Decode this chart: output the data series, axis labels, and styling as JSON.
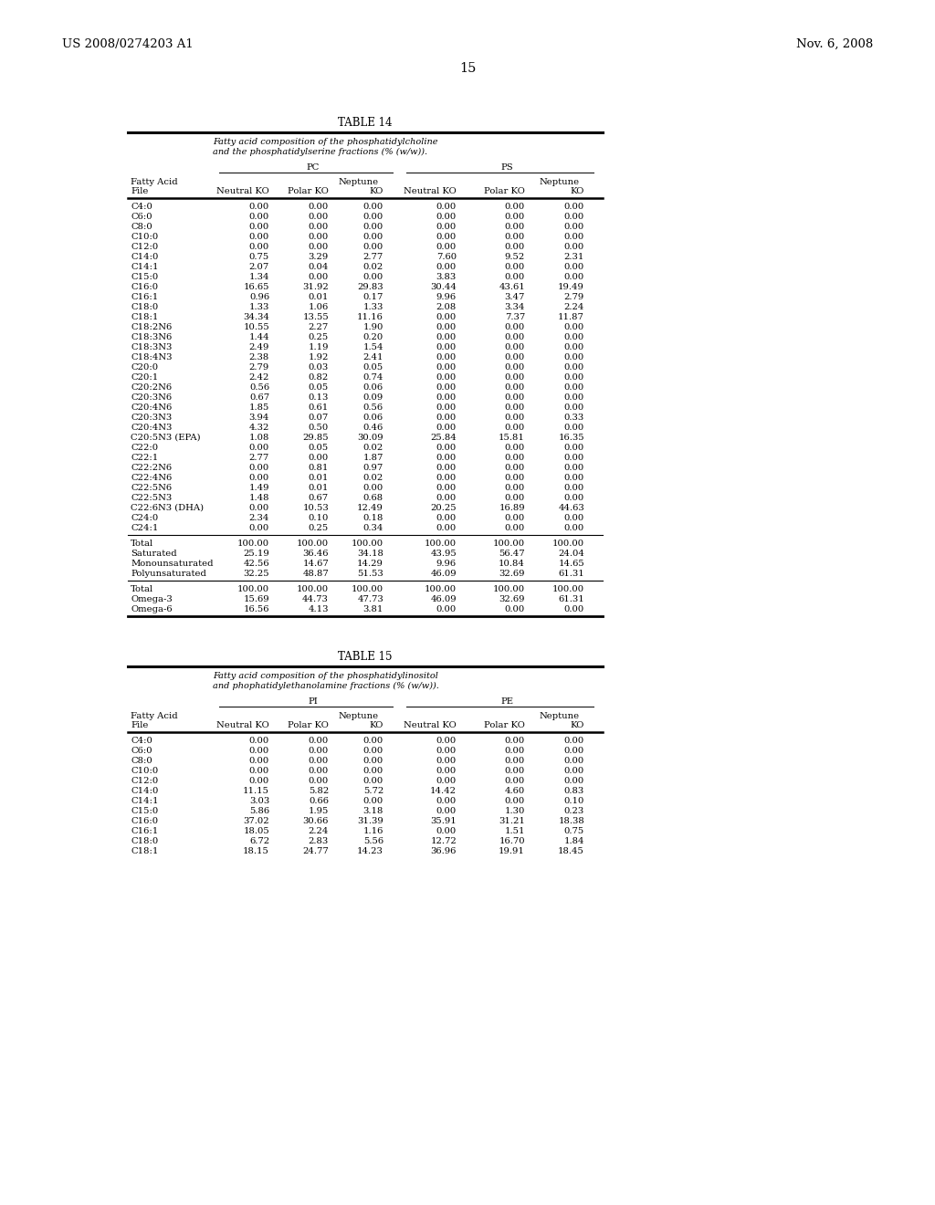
{
  "header_left": "US 2008/0274203 A1",
  "header_right": "Nov. 6, 2008",
  "page_number": "15",
  "table14_title": "TABLE 14",
  "table14_subtitle1": "Fatty acid composition of the phosphatidylcholine",
  "table14_subtitle2": "and the phosphatidylserine fractions (% (w/w)).",
  "table14_group1": "PC",
  "table14_group2": "PS",
  "table14_rows": [
    [
      "C4:0",
      "0.00",
      "0.00",
      "0.00",
      "0.00",
      "0.00",
      "0.00"
    ],
    [
      "C6:0",
      "0.00",
      "0.00",
      "0.00",
      "0.00",
      "0.00",
      "0.00"
    ],
    [
      "C8:0",
      "0.00",
      "0.00",
      "0.00",
      "0.00",
      "0.00",
      "0.00"
    ],
    [
      "C10:0",
      "0.00",
      "0.00",
      "0.00",
      "0.00",
      "0.00",
      "0.00"
    ],
    [
      "C12:0",
      "0.00",
      "0.00",
      "0.00",
      "0.00",
      "0.00",
      "0.00"
    ],
    [
      "C14:0",
      "0.75",
      "3.29",
      "2.77",
      "7.60",
      "9.52",
      "2.31"
    ],
    [
      "C14:1",
      "2.07",
      "0.04",
      "0.02",
      "0.00",
      "0.00",
      "0.00"
    ],
    [
      "C15:0",
      "1.34",
      "0.00",
      "0.00",
      "3.83",
      "0.00",
      "0.00"
    ],
    [
      "C16:0",
      "16.65",
      "31.92",
      "29.83",
      "30.44",
      "43.61",
      "19.49"
    ],
    [
      "C16:1",
      "0.96",
      "0.01",
      "0.17",
      "9.96",
      "3.47",
      "2.79"
    ],
    [
      "C18:0",
      "1.33",
      "1.06",
      "1.33",
      "2.08",
      "3.34",
      "2.24"
    ],
    [
      "C18:1",
      "34.34",
      "13.55",
      "11.16",
      "0.00",
      "7.37",
      "11.87"
    ],
    [
      "C18:2N6",
      "10.55",
      "2.27",
      "1.90",
      "0.00",
      "0.00",
      "0.00"
    ],
    [
      "C18:3N6",
      "1.44",
      "0.25",
      "0.20",
      "0.00",
      "0.00",
      "0.00"
    ],
    [
      "C18:3N3",
      "2.49",
      "1.19",
      "1.54",
      "0.00",
      "0.00",
      "0.00"
    ],
    [
      "C18:4N3",
      "2.38",
      "1.92",
      "2.41",
      "0.00",
      "0.00",
      "0.00"
    ],
    [
      "C20:0",
      "2.79",
      "0.03",
      "0.05",
      "0.00",
      "0.00",
      "0.00"
    ],
    [
      "C20:1",
      "2.42",
      "0.82",
      "0.74",
      "0.00",
      "0.00",
      "0.00"
    ],
    [
      "C20:2N6",
      "0.56",
      "0.05",
      "0.06",
      "0.00",
      "0.00",
      "0.00"
    ],
    [
      "C20:3N6",
      "0.67",
      "0.13",
      "0.09",
      "0.00",
      "0.00",
      "0.00"
    ],
    [
      "C20:4N6",
      "1.85",
      "0.61",
      "0.56",
      "0.00",
      "0.00",
      "0.00"
    ],
    [
      "C20:3N3",
      "3.94",
      "0.07",
      "0.06",
      "0.00",
      "0.00",
      "0.33"
    ],
    [
      "C20:4N3",
      "4.32",
      "0.50",
      "0.46",
      "0.00",
      "0.00",
      "0.00"
    ],
    [
      "C20:5N3 (EPA)",
      "1.08",
      "29.85",
      "30.09",
      "25.84",
      "15.81",
      "16.35"
    ],
    [
      "C22:0",
      "0.00",
      "0.05",
      "0.02",
      "0.00",
      "0.00",
      "0.00"
    ],
    [
      "C22:1",
      "2.77",
      "0.00",
      "1.87",
      "0.00",
      "0.00",
      "0.00"
    ],
    [
      "C22:2N6",
      "0.00",
      "0.81",
      "0.97",
      "0.00",
      "0.00",
      "0.00"
    ],
    [
      "C22:4N6",
      "0.00",
      "0.01",
      "0.02",
      "0.00",
      "0.00",
      "0.00"
    ],
    [
      "C22:5N6",
      "1.49",
      "0.01",
      "0.00",
      "0.00",
      "0.00",
      "0.00"
    ],
    [
      "C22:5N3",
      "1.48",
      "0.67",
      "0.68",
      "0.00",
      "0.00",
      "0.00"
    ],
    [
      "C22:6N3 (DHA)",
      "0.00",
      "10.53",
      "12.49",
      "20.25",
      "16.89",
      "44.63"
    ],
    [
      "C24:0",
      "2.34",
      "0.10",
      "0.18",
      "0.00",
      "0.00",
      "0.00"
    ],
    [
      "C24:1",
      "0.00",
      "0.25",
      "0.34",
      "0.00",
      "0.00",
      "0.00"
    ]
  ],
  "table14_summary1": [
    [
      "Total",
      "100.00",
      "100.00",
      "100.00",
      "100.00",
      "100.00",
      "100.00"
    ],
    [
      "Saturated",
      "25.19",
      "36.46",
      "34.18",
      "43.95",
      "56.47",
      "24.04"
    ],
    [
      "Monounsaturated",
      "42.56",
      "14.67",
      "14.29",
      "9.96",
      "10.84",
      "14.65"
    ],
    [
      "Polyunsaturated",
      "32.25",
      "48.87",
      "51.53",
      "46.09",
      "32.69",
      "61.31"
    ]
  ],
  "table14_summary2": [
    [
      "Total",
      "100.00",
      "100.00",
      "100.00",
      "100.00",
      "100.00",
      "100.00"
    ],
    [
      "Omega-3",
      "15.69",
      "44.73",
      "47.73",
      "46.09",
      "32.69",
      "61.31"
    ],
    [
      "Omega-6",
      "16.56",
      "4.13",
      "3.81",
      "0.00",
      "0.00",
      "0.00"
    ]
  ],
  "table15_title": "TABLE 15",
  "table15_subtitle1": "Fatty acid composition of the phosphatidylinositol",
  "table15_subtitle2": "and phophatidylethanolamine fractions (% (w/w)).",
  "table15_group1": "PI",
  "table15_group2": "PE",
  "table15_rows": [
    [
      "C4:0",
      "0.00",
      "0.00",
      "0.00",
      "0.00",
      "0.00",
      "0.00"
    ],
    [
      "C6:0",
      "0.00",
      "0.00",
      "0.00",
      "0.00",
      "0.00",
      "0.00"
    ],
    [
      "C8:0",
      "0.00",
      "0.00",
      "0.00",
      "0.00",
      "0.00",
      "0.00"
    ],
    [
      "C10:0",
      "0.00",
      "0.00",
      "0.00",
      "0.00",
      "0.00",
      "0.00"
    ],
    [
      "C12:0",
      "0.00",
      "0.00",
      "0.00",
      "0.00",
      "0.00",
      "0.00"
    ],
    [
      "C14:0",
      "11.15",
      "5.82",
      "5.72",
      "14.42",
      "4.60",
      "0.83"
    ],
    [
      "C14:1",
      "3.03",
      "0.66",
      "0.00",
      "0.00",
      "0.00",
      "0.10"
    ],
    [
      "C15:0",
      "5.86",
      "1.95",
      "3.18",
      "0.00",
      "1.30",
      "0.23"
    ],
    [
      "C16:0",
      "37.02",
      "30.66",
      "31.39",
      "35.91",
      "31.21",
      "18.38"
    ],
    [
      "C16:1",
      "18.05",
      "2.24",
      "1.16",
      "0.00",
      "1.51",
      "0.75"
    ],
    [
      "C18:0",
      "6.72",
      "2.83",
      "5.56",
      "12.72",
      "16.70",
      "1.84"
    ],
    [
      "C18:1",
      "18.15",
      "24.77",
      "14.23",
      "36.96",
      "19.91",
      "18.45"
    ]
  ],
  "bg_color": "#ffffff",
  "text_color": "#000000"
}
